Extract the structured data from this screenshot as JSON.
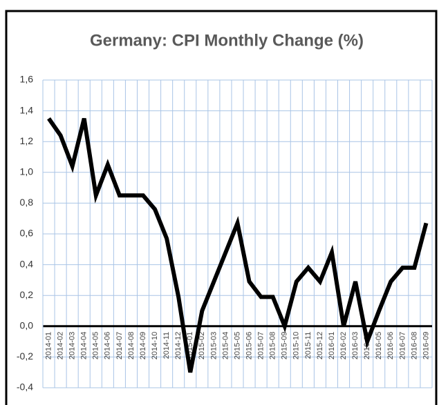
{
  "chart_data": {
    "type": "line",
    "title": "Germany: CPI Monthly Change (%)",
    "categories": [
      "2014-01",
      "2014-02",
      "2014-03",
      "2014-04",
      "2014-05",
      "2014-06",
      "2014-07",
      "2014-08",
      "2014-09",
      "2014-10",
      "2014-11",
      "2014-12",
      "2015-01",
      "2015-02",
      "2015-03",
      "2015-04",
      "2015-05",
      "2015-06",
      "2015-07",
      "2015-08",
      "2015-09",
      "2015-10",
      "2015-11",
      "2015-12",
      "2016-01",
      "2016-02",
      "2016-03",
      "2016-04",
      "2016-05",
      "2016-06",
      "2016-07",
      "2016-08",
      "2016-09"
    ],
    "values": [
      1.35,
      1.24,
      1.04,
      1.35,
      0.85,
      1.05,
      0.85,
      0.85,
      0.85,
      0.76,
      0.57,
      0.19,
      -0.3,
      0.1,
      0.29,
      0.48,
      0.67,
      0.29,
      0.19,
      0.19,
      0.0,
      0.29,
      0.38,
      0.29,
      0.48,
      0.0,
      0.29,
      -0.1,
      0.1,
      0.29,
      0.38,
      0.38,
      0.67
    ],
    "color": "#000000",
    "ylim": [
      -0.4,
      1.6
    ],
    "yticks": [
      {
        "value": -0.4,
        "label": "-0,4"
      },
      {
        "value": -0.2,
        "label": "-0,2"
      },
      {
        "value": 0,
        "label": "0,0"
      },
      {
        "value": 0.2,
        "label": "0,2"
      },
      {
        "value": 0.4,
        "label": "0,4"
      },
      {
        "value": 0.6,
        "label": "0,6"
      },
      {
        "value": 0.8,
        "label": "0,8"
      },
      {
        "value": 1.0,
        "label": "1,0"
      },
      {
        "value": 1.2,
        "label": "1,2"
      },
      {
        "value": 1.4,
        "label": "1,4"
      },
      {
        "value": 1.6,
        "label": "1,6"
      }
    ],
    "grid": true
  }
}
